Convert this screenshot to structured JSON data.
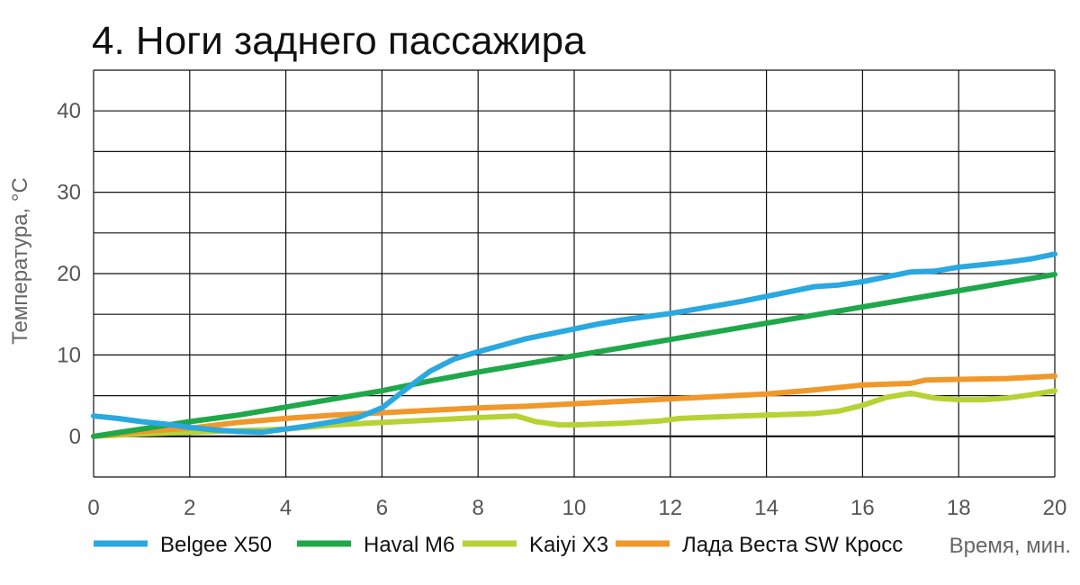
{
  "chart_data": {
    "type": "line",
    "title": "4. Ноги заднего пассажира",
    "xlabel": "Время, мин.",
    "ylabel": "Температура, °С",
    "xlim": [
      0,
      20
    ],
    "ylim": [
      -5,
      45
    ],
    "x_ticks": [
      0,
      2,
      4,
      6,
      8,
      10,
      12,
      14,
      16,
      18,
      20
    ],
    "y_ticks": [
      0,
      10,
      20,
      30,
      40
    ],
    "grid": true,
    "legend_position": "bottom",
    "series": [
      {
        "name": "Belgee X50",
        "color": "#2aa8e0",
        "points": [
          [
            0,
            2.5
          ],
          [
            0.5,
            2.2
          ],
          [
            1,
            1.8
          ],
          [
            1.5,
            1.5
          ],
          [
            2,
            1.1
          ],
          [
            2.5,
            0.8
          ],
          [
            3,
            0.6
          ],
          [
            3.5,
            0.5
          ],
          [
            4,
            0.9
          ],
          [
            4.5,
            1.3
          ],
          [
            5,
            1.8
          ],
          [
            5.5,
            2.3
          ],
          [
            6,
            3.5
          ],
          [
            6.5,
            5.8
          ],
          [
            7,
            8
          ],
          [
            7.5,
            9.5
          ],
          [
            8,
            10.4
          ],
          [
            8.5,
            11.2
          ],
          [
            9,
            12
          ],
          [
            9.5,
            12.6
          ],
          [
            10,
            13.2
          ],
          [
            10.5,
            13.8
          ],
          [
            11,
            14.3
          ],
          [
            11.5,
            14.7
          ],
          [
            12,
            15.1
          ],
          [
            12.5,
            15.6
          ],
          [
            13,
            16.1
          ],
          [
            13.5,
            16.6
          ],
          [
            14,
            17.2
          ],
          [
            14.5,
            17.8
          ],
          [
            15,
            18.4
          ],
          [
            15.5,
            18.6
          ],
          [
            16,
            19
          ],
          [
            16.5,
            19.6
          ],
          [
            17,
            20.2
          ],
          [
            17.5,
            20.3
          ],
          [
            18,
            20.8
          ],
          [
            18.5,
            21.1
          ],
          [
            19,
            21.4
          ],
          [
            19.5,
            21.8
          ],
          [
            20,
            22.4
          ]
        ]
      },
      {
        "name": "Haval M6",
        "color": "#1fa84a",
        "points": [
          [
            0,
            0
          ],
          [
            1,
            0.9
          ],
          [
            2,
            1.8
          ],
          [
            3,
            2.6
          ],
          [
            4,
            3.6
          ],
          [
            5,
            4.6
          ],
          [
            6,
            5.6
          ],
          [
            7,
            6.8
          ],
          [
            8,
            7.9
          ],
          [
            9,
            8.9
          ],
          [
            10,
            9.9
          ],
          [
            11,
            10.9
          ],
          [
            12,
            11.9
          ],
          [
            13,
            12.9
          ],
          [
            14,
            13.9
          ],
          [
            15,
            14.9
          ],
          [
            16,
            15.9
          ],
          [
            17,
            16.9
          ],
          [
            18,
            17.9
          ],
          [
            19,
            18.9
          ],
          [
            20,
            19.9
          ]
        ]
      },
      {
        "name": "Kaiyi X3",
        "color": "#b5d334",
        "points": [
          [
            0,
            0
          ],
          [
            1,
            0.3
          ],
          [
            2,
            0.5
          ],
          [
            3,
            0.7
          ],
          [
            4,
            0.9
          ],
          [
            5,
            1.4
          ],
          [
            6,
            1.7
          ],
          [
            7,
            2
          ],
          [
            8,
            2.3
          ],
          [
            8.8,
            2.5
          ],
          [
            9.2,
            1.8
          ],
          [
            9.7,
            1.4
          ],
          [
            10,
            1.4
          ],
          [
            11,
            1.6
          ],
          [
            11.8,
            1.9
          ],
          [
            12.2,
            2.2
          ],
          [
            13,
            2.4
          ],
          [
            14,
            2.6
          ],
          [
            15,
            2.8
          ],
          [
            15.5,
            3.1
          ],
          [
            16,
            3.8
          ],
          [
            16.5,
            4.8
          ],
          [
            17,
            5.3
          ],
          [
            17.5,
            4.7
          ],
          [
            18,
            4.5
          ],
          [
            18.5,
            4.5
          ],
          [
            19,
            4.7
          ],
          [
            19.5,
            5.1
          ],
          [
            20,
            5.6
          ]
        ]
      },
      {
        "name": "Лада Веста SW Кросс",
        "color": "#f0982a",
        "points": [
          [
            0,
            0
          ],
          [
            1,
            0.6
          ],
          [
            2,
            1
          ],
          [
            3,
            1.7
          ],
          [
            4,
            2.2
          ],
          [
            5,
            2.6
          ],
          [
            6,
            2.9
          ],
          [
            7,
            3.2
          ],
          [
            8,
            3.5
          ],
          [
            9,
            3.7
          ],
          [
            10,
            4
          ],
          [
            11,
            4.3
          ],
          [
            12,
            4.6
          ],
          [
            13,
            4.9
          ],
          [
            14,
            5.2
          ],
          [
            15,
            5.7
          ],
          [
            16,
            6.3
          ],
          [
            17,
            6.5
          ],
          [
            17.3,
            6.9
          ],
          [
            18,
            7
          ],
          [
            19,
            7.1
          ],
          [
            20,
            7.4
          ]
        ]
      }
    ]
  }
}
